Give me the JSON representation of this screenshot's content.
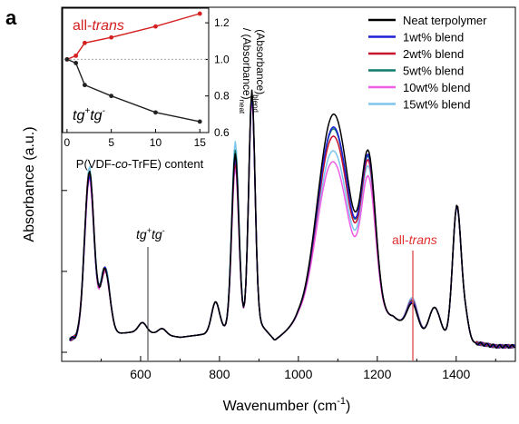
{
  "panel_label": "a",
  "chart_data": [
    {
      "type": "line",
      "title": "",
      "xlabel": "Wavenumber (cm",
      "xlabel_sup": "-1",
      "xlabel_end": ")",
      "ylabel": "Absorbance (a.u.)",
      "xlim": [
        400,
        1550
      ],
      "ylim": [
        0,
        1
      ],
      "x_ticks": [
        600,
        800,
        1000,
        1200,
        1400
      ],
      "grid": false,
      "legend_position": "top-right",
      "series": [
        {
          "name": "Neat terpolymer",
          "color": "#000000"
        },
        {
          "name": "1wt% blend",
          "color": "#1f1fd6"
        },
        {
          "name": "2wt% blend",
          "color": "#c8102e"
        },
        {
          "name": "5wt% blend",
          "color": "#0f7a6e"
        },
        {
          "name": "10wt% blend",
          "color": "#ee5ee6"
        },
        {
          "name": "15wt% blend",
          "color": "#7cc6ee"
        }
      ],
      "annotations": [
        {
          "label": "tg",
          "sup1": "+",
          "mid": "tg",
          "sup2": "-",
          "x": 615,
          "color": "#000000"
        },
        {
          "label": "all-",
          "italic": "trans",
          "x": 1283,
          "color": "#e03030"
        }
      ]
    },
    {
      "type": "line",
      "title": "",
      "xlabel": "P(VDF-co-TrFE) content",
      "ylabel": "(Absorbance)blend / (Absorbance)neat",
      "xlim": [
        -0.5,
        16
      ],
      "ylim": [
        0.6,
        1.28
      ],
      "x_ticks": [
        0,
        5,
        10,
        15
      ],
      "y_ticks": [
        0.6,
        0.8,
        1.0,
        1.2
      ],
      "y_tick_labels": [
        "0.6",
        "0.8",
        "1.0",
        "1.2"
      ],
      "reference_line": 1.0,
      "series": [
        {
          "name": "all-trans",
          "color": "#d42020",
          "x": [
            0,
            1,
            2,
            5,
            10,
            15
          ],
          "y": [
            1.0,
            1.02,
            1.09,
            1.12,
            1.18,
            1.25
          ]
        },
        {
          "name": "tg+tg-",
          "color": "#222222",
          "x": [
            0,
            1,
            2,
            5,
            10,
            15
          ],
          "y": [
            1.0,
            0.98,
            0.86,
            0.8,
            0.71,
            0.66
          ]
        }
      ],
      "labels": {
        "all_trans_a": "all-",
        "all_trans_b": "trans",
        "tg": "tg",
        "sup_plus": "+",
        "sup_minus": "-",
        "x_label_a": "P(VDF-",
        "x_label_b": "co",
        "x_label_c": "-TrFE) content",
        "y_label_1a": "(Absorbance)",
        "y_label_1b": "blend",
        "y_label_2a": "/ (Absorbance)",
        "y_label_2b": "neat"
      }
    }
  ]
}
